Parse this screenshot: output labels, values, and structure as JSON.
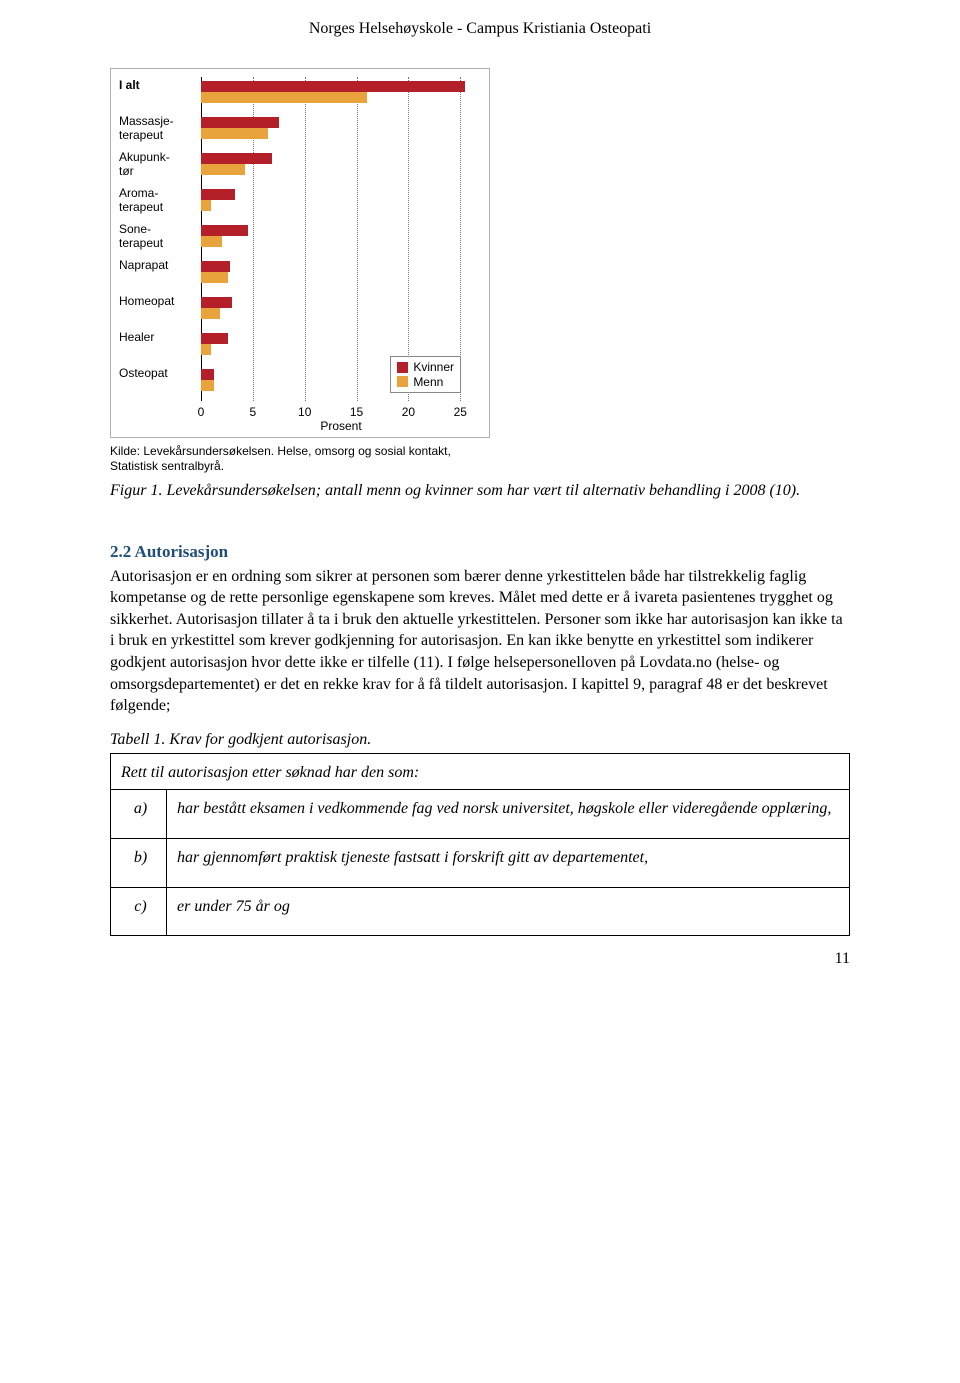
{
  "header": {
    "title": "Norges Helsehøyskole - Campus Kristiania Osteopati"
  },
  "chart": {
    "type": "bar",
    "orientation": "horizontal",
    "x_max": 27,
    "x_ticks": [
      0,
      5,
      10,
      15,
      20,
      25
    ],
    "x_label": "Prosent",
    "legend": {
      "kvinner": {
        "label": "Kvinner",
        "color": "#b3202a"
      },
      "menn": {
        "label": "Menn",
        "color": "#e8a33d"
      }
    },
    "categories": [
      {
        "label": "I alt",
        "lines": [
          "I alt"
        ],
        "bold": true,
        "kvinner": 25.5,
        "menn": 16.0
      },
      {
        "label": "Massasje-terapeut",
        "lines": [
          "Massasje-",
          "terapeut"
        ],
        "bold": false,
        "kvinner": 7.5,
        "menn": 6.5
      },
      {
        "label": "Akupunk-tør",
        "lines": [
          "Akupunk-",
          "tør"
        ],
        "bold": false,
        "kvinner": 6.8,
        "menn": 4.2
      },
      {
        "label": "Aroma-terapeut",
        "lines": [
          "Aroma-",
          "terapeut"
        ],
        "bold": false,
        "kvinner": 3.3,
        "menn": 1.0
      },
      {
        "label": "Sone-terapeut",
        "lines": [
          "Sone-",
          "terapeut"
        ],
        "bold": false,
        "kvinner": 4.5,
        "menn": 2.0
      },
      {
        "label": "Naprapat",
        "lines": [
          "Naprapat"
        ],
        "bold": false,
        "kvinner": 2.8,
        "menn": 2.6
      },
      {
        "label": "Homeopat",
        "lines": [
          "Homeopat"
        ],
        "bold": false,
        "kvinner": 3.0,
        "menn": 1.8
      },
      {
        "label": "Healer",
        "lines": [
          "Healer"
        ],
        "bold": false,
        "kvinner": 2.6,
        "menn": 1.0
      },
      {
        "label": "Osteopat",
        "lines": [
          "Osteopat"
        ],
        "bold": false,
        "kvinner": 1.3,
        "menn": 1.3
      }
    ],
    "grid_color": "#777777",
    "background_color": "#ffffff",
    "source": "Kilde: Levekårsundersøkelsen. Helse, omsorg og sosial kontakt, Statistisk sentralbyrå."
  },
  "figure_caption": "Figur 1. Levekårsundersøkelsen; antall menn og kvinner som har vært til alternativ behandling i 2008 (10).",
  "section": {
    "heading": "2.2 Autorisasjon",
    "body": "Autorisasjon er en ordning som sikrer at personen som bærer denne yrkestittelen både har tilstrekkelig faglig kompetanse og de rette personlige egenskapene som kreves. Målet med dette er å ivareta pasientenes trygghet og sikkerhet. Autorisasjon tillater å ta i bruk den aktuelle yrkestittelen. Personer som ikke har autorisasjon kan ikke ta i bruk en yrkestittel som krever godkjenning for autorisasjon. En kan ikke benytte en yrkestittel som indikerer godkjent autorisasjon hvor dette ikke er tilfelle (11). I følge helsepersonelloven på Lovdata.no (helse- og omsorgsdepartementet) er det en rekke krav for å få tildelt autorisasjon. I kapittel 9, paragraf 48 er det beskrevet følgende;"
  },
  "table": {
    "caption": "Tabell 1. Krav for godkjent autorisasjon.",
    "header": "Rett til autorisasjon etter søknad har den som:",
    "rows": [
      {
        "letter": "a)",
        "text": "har bestått eksamen i vedkommende fag ved norsk universitet, høgskole eller videregående opplæring,"
      },
      {
        "letter": "b)",
        "text": "har gjennomført praktisk tjeneste fastsatt i forskrift gitt av departementet,"
      },
      {
        "letter": "c)",
        "text": "er under 75 år og"
      }
    ]
  },
  "page_number": "11"
}
